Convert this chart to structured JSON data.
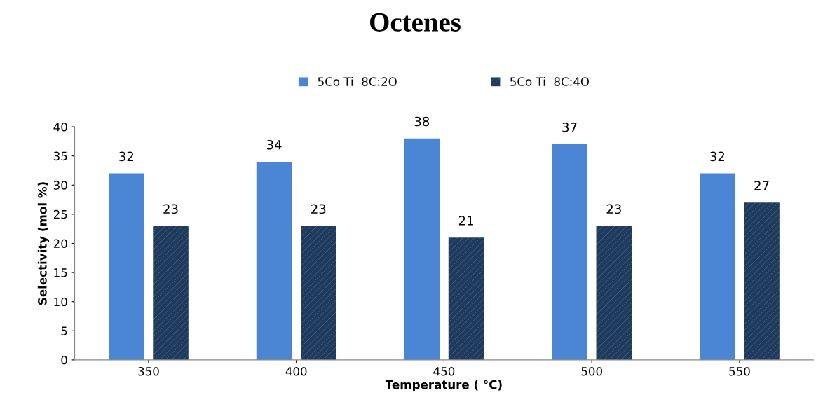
{
  "chart_data": {
    "type": "bar",
    "title": "Octenes",
    "xlabel": "Temperature ( °C)",
    "ylabel": "Selectivity (mol %)",
    "categories": [
      "350",
      "400",
      "450",
      "500",
      "550"
    ],
    "series": [
      {
        "name": "5Co Ti  8C:2O",
        "color": "#4a86d4",
        "values": [
          32,
          34,
          38,
          37,
          32
        ]
      },
      {
        "name": "5Co Ti  8C:4O",
        "color": "#1f3a5a",
        "values": [
          23,
          23,
          21,
          23,
          27
        ]
      }
    ],
    "ylim": [
      0,
      40
    ],
    "yticks": [
      0,
      5,
      10,
      15,
      20,
      25,
      30,
      35,
      40
    ],
    "grid": false,
    "legend": "top",
    "data_labels": true
  }
}
